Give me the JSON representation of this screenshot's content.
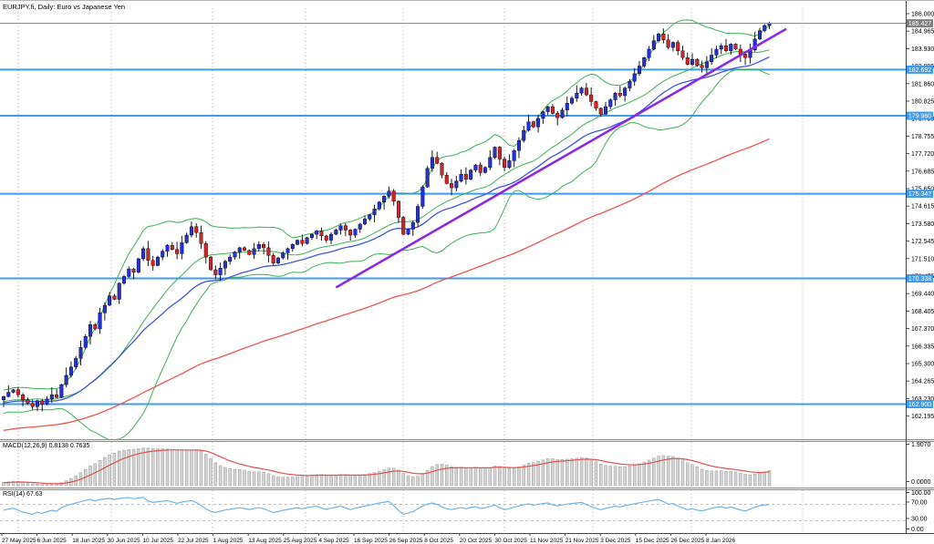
{
  "window": {
    "title": "EURJPY.fi, Daily: Euro vs Japanese Yen"
  },
  "labels": {
    "macd": "MACD(12,26,9) 0.8138 0.7635",
    "rsi": "RSI(14) 67.63"
  },
  "chart_data": {
    "type": "candlestick",
    "symbol": "EURJPY.fi",
    "timeframe": "Daily",
    "title": "EURJPY.fi, Daily: Euro vs Japanese Yen",
    "price_axis": {
      "ticks": [
        "186.000",
        "184.965",
        "183.930",
        "182.895",
        "181.860",
        "180.825",
        "179.790",
        "178.755",
        "177.720",
        "176.685",
        "175.650",
        "174.615",
        "173.580",
        "172.545",
        "171.510",
        "170.475",
        "169.440",
        "168.405",
        "167.370",
        "166.335",
        "165.300",
        "164.265",
        "163.230",
        "162.195"
      ],
      "top": 186.0,
      "step": 1.035
    },
    "date_axis": {
      "ticks": [
        "27 May 2025",
        "6 Jun 2025",
        "18 Jun 2025",
        "30 Jun 2025",
        "10 Jul 2025",
        "22 Jul 2025",
        "1 Aug 2025",
        "13 Aug 2025",
        "25 Aug 2025",
        "4 Sep 2025",
        "16 Sep 2025",
        "26 Sep 2025",
        "8 Oct 2025",
        "20 Oct 2025",
        "30 Oct 2025",
        "11 Nov 2025",
        "21 Nov 2025",
        "3 Dec 2025",
        "15 Dec 2025",
        "26 Dec 2025",
        "8 Jan 2026"
      ]
    },
    "first_open": 163.15,
    "closes": [
      163.35,
      163.6,
      163.75,
      163.45,
      163.15,
      162.95,
      162.75,
      163.1,
      162.9,
      163.2,
      163.45,
      163.3,
      164.05,
      164.6,
      165.1,
      165.6,
      166.25,
      166.9,
      167.6,
      167.35,
      168.3,
      168.75,
      169.3,
      169.1,
      170.05,
      170.45,
      170.9,
      170.7,
      171.5,
      172.1,
      171.4,
      171.1,
      171.6,
      171.95,
      172.3,
      172.05,
      171.8,
      172.45,
      172.9,
      173.4,
      173.05,
      172.4,
      171.6,
      170.85,
      170.55,
      170.95,
      171.35,
      171.6,
      171.9,
      172.15,
      172.0,
      171.75,
      172.1,
      172.35,
      172.15,
      171.7,
      171.25,
      171.55,
      171.85,
      172.1,
      172.35,
      172.6,
      172.4,
      172.75,
      172.95,
      173.15,
      172.85,
      172.6,
      172.95,
      173.2,
      173.45,
      173.2,
      172.9,
      173.25,
      173.55,
      173.85,
      174.1,
      174.45,
      174.85,
      175.2,
      175.5,
      174.9,
      173.95,
      172.95,
      173.25,
      173.65,
      174.6,
      175.75,
      176.85,
      177.5,
      177.15,
      176.45,
      175.95,
      175.7,
      176.1,
      176.5,
      176.2,
      176.75,
      177.05,
      176.6,
      176.9,
      177.5,
      178.1,
      177.4,
      176.9,
      177.3,
      177.9,
      178.5,
      179.1,
      179.6,
      179.3,
      179.8,
      180.2,
      180.5,
      180.1,
      179.85,
      180.3,
      180.7,
      181.0,
      181.3,
      181.6,
      181.2,
      180.8,
      180.4,
      180.05,
      180.5,
      180.9,
      181.3,
      181.15,
      181.6,
      182.0,
      182.45,
      182.9,
      183.4,
      183.9,
      184.4,
      184.8,
      184.45,
      184.0,
      184.3,
      183.8,
      183.4,
      183.0,
      183.3,
      182.95,
      182.8,
      183.15,
      183.55,
      183.9,
      184.1,
      183.8,
      184.2,
      183.9,
      183.6,
      183.4,
      183.85,
      184.5,
      185.0,
      185.3,
      185.43
    ],
    "levels": [
      {
        "price": 182.692,
        "label": "182.692"
      },
      {
        "price": 179.96,
        "label": "179.960"
      },
      {
        "price": 175.347,
        "label": "175.347"
      },
      {
        "price": 170.338,
        "label": "170.338"
      },
      {
        "price": 162.9,
        "label": "162.900"
      }
    ],
    "last_price": {
      "price": 185.427,
      "label": "185.427"
    },
    "trendline": {
      "from_bar": 69,
      "from_price": 169.8,
      "to_bar": 162.5,
      "to_price": 185.1
    },
    "indicators": {
      "bollinger": {
        "period": 20,
        "deviation": 2
      },
      "ma_fast": {
        "period": 30
      },
      "ma_slow": {
        "period": 110,
        "seed": 160.4
      },
      "macd": {
        "fast": 12,
        "slow": 26,
        "signal": 9,
        "value": 0.8138,
        "signal_value": 0.7635,
        "axis_ticks": [
          "1.9070",
          "0.0000"
        ]
      },
      "rsi": {
        "period": 14,
        "value": 67.63,
        "axis_ticks": [
          "100.00",
          "70.00",
          "30.00",
          "0.00"
        ],
        "levels": [
          70,
          30
        ]
      }
    },
    "colors": {
      "bull": "#2431cf",
      "bear": "#d32424",
      "wick": "#1a1a1a",
      "bollinger": "#3cb054",
      "ma_fast": "#4055dd",
      "ma_slow": "#ef5350",
      "trendline": "#8a2be2",
      "level": "#3d9bf0",
      "last_price": "#7f7f7f",
      "macd_hist_fill": "#d2d2d2",
      "macd_hist_stroke": "#9e9e9e",
      "macd_signal": "#e05252",
      "rsi_line": "#74b2e8",
      "grid": "#b3b3b3"
    }
  }
}
